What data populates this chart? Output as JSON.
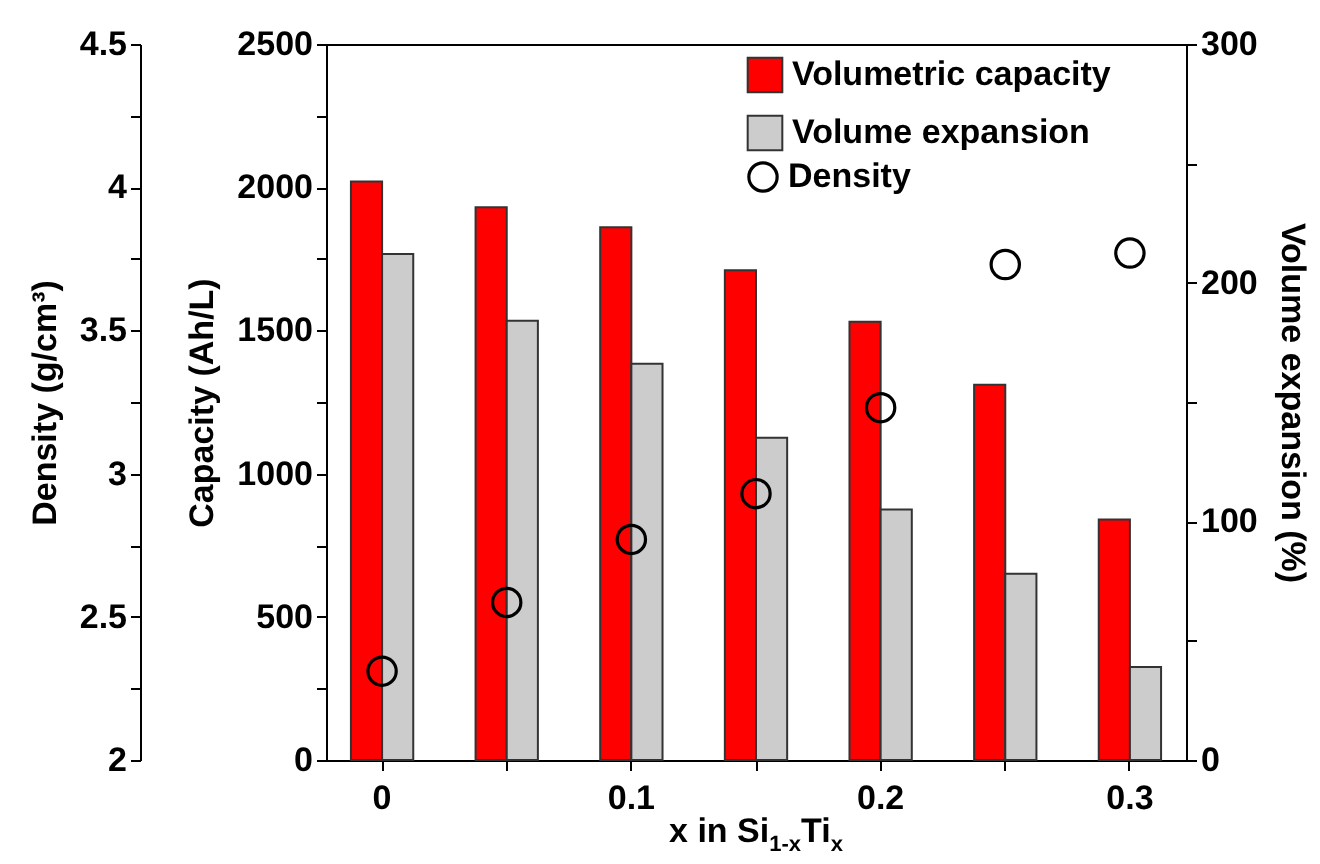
{
  "chart_data": {
    "type": "bar",
    "xlabel": "x in Si$_{1-x}$Ti$_{x}$",
    "ylabel": "Capacity (Ah/L)",
    "y2label": "Volume expansion (%)",
    "y3label": "Density (g/cm³)",
    "categories": [
      "0",
      null,
      "0.1",
      null,
      "0.2",
      null,
      "0.3"
    ],
    "series": [
      {
        "name": "Volumetric capacity",
        "color": "#ff0000",
        "values": [
          2020,
          1930,
          1860,
          1710,
          1530,
          1310,
          840
        ]
      },
      {
        "name": "Volume expansion",
        "color": "#cccccc",
        "axis": "y2",
        "values": [
          212,
          184,
          166,
          135,
          105,
          78,
          39
        ]
      },
      {
        "name": "Density",
        "type": "scatter",
        "color": "#000000",
        "axis": "y3",
        "marker": "circle",
        "values": [
          2.31,
          2.55,
          2.77,
          2.93,
          3.23,
          3.73,
          3.77
        ]
      }
    ],
    "ylim": [
      0,
      2500
    ],
    "yticks": [
      0,
      {
        "value": 250,
        "label": null
      },
      500,
      {
        "value": 750,
        "label": null
      },
      1000,
      {
        "value": 1250,
        "label": null
      },
      1500,
      {
        "value": 1750,
        "label": null
      },
      2000,
      {
        "value": 2250,
        "label": null
      },
      2500
    ],
    "y2lim": [
      0,
      300
    ],
    "y2ticks": [
      0,
      {
        "value": 50,
        "label": null
      },
      100,
      {
        "value": 150,
        "label": null
      },
      200,
      {
        "value": 250,
        "label": null
      },
      300
    ],
    "y3lim": [
      2,
      4.5
    ],
    "y3ticks": [
      2,
      {
        "value": 2.25,
        "label": null
      },
      2.5,
      {
        "value": 2.75,
        "label": null
      },
      3,
      {
        "value": 3.25,
        "label": null
      },
      3.5,
      {
        "value": 3.75,
        "label": null
      },
      4,
      {
        "value": 4.25,
        "label": null
      },
      4.5
    ],
    "legend": "top right",
    "grid": false
  }
}
